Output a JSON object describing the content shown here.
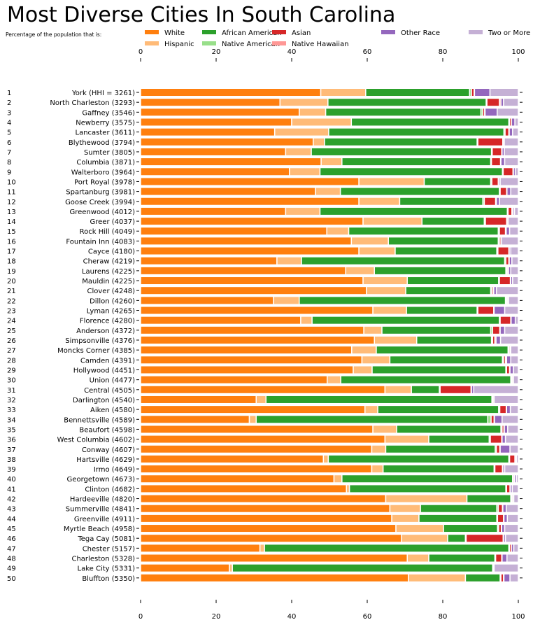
{
  "title": "Most Diverse Cities In South Carolina",
  "subtitle": "Percentage of the population that is:",
  "chart_data": {
    "type": "bar",
    "orientation": "horizontal",
    "stacked": true,
    "xlim": [
      0,
      100
    ],
    "x_ticks": [
      0,
      20,
      40,
      60,
      80,
      100
    ],
    "grid": false,
    "legend_placement": "top",
    "ranks": [
      1,
      2,
      3,
      4,
      5,
      6,
      7,
      8,
      9,
      10,
      11,
      12,
      13,
      14,
      15,
      16,
      17,
      18,
      19,
      20,
      21,
      22,
      23,
      24,
      25,
      26,
      27,
      28,
      29,
      30,
      31,
      32,
      33,
      34,
      35,
      36,
      37,
      38,
      39,
      40,
      41,
      42,
      43,
      44,
      45,
      46,
      47,
      48,
      49,
      50
    ],
    "categories": [
      "York (HHI = 3261)",
      "North Charleston (3293)",
      "Gaffney (3546)",
      "Newberry (3575)",
      "Lancaster (3611)",
      "Blythewood (3794)",
      "Sumter (3805)",
      "Columbia (3871)",
      "Walterboro (3964)",
      "Port Royal (3978)",
      "Spartanburg (3981)",
      "Goose Creek (3994)",
      "Greenwood (4012)",
      "Greer (4037)",
      "Rock Hill (4049)",
      "Fountain Inn (4083)",
      "Cayce (4180)",
      "Cheraw (4219)",
      "Laurens (4225)",
      "Mauldin (4225)",
      "Clover (4248)",
      "Dillon (4260)",
      "Lyman (4265)",
      "Florence (4280)",
      "Anderson (4372)",
      "Simpsonville (4376)",
      "Moncks Corner (4385)",
      "Camden (4391)",
      "Hollywood (4451)",
      "Union (4477)",
      "Central (4505)",
      "Darlington (4540)",
      "Aiken (4580)",
      "Bennettsville (4589)",
      "Beaufort (4598)",
      "West Columbia (4602)",
      "Conway (4607)",
      "Hartsville (4629)",
      "Irmo (4649)",
      "Georgetown (4673)",
      "Clinton (4682)",
      "Hardeeville (4820)",
      "Summerville (4841)",
      "Greenville (4911)",
      "Myrtle Beach (4958)",
      "Tega Cay (5081)",
      "Chester (5157)",
      "Charleston (5328)",
      "Lake City (5331)",
      "Bluffton (5350)"
    ],
    "series": [
      {
        "name": "White",
        "color": "#ff7f0e",
        "values": [
          47.7,
          36.9,
          42.0,
          40.0,
          35.5,
          45.7,
          38.4,
          47.8,
          39.4,
          57.8,
          46.3,
          57.8,
          38.4,
          58.9,
          49.3,
          55.8,
          57.8,
          36.1,
          54.3,
          58.9,
          59.8,
          35.2,
          61.5,
          42.4,
          59.1,
          61.9,
          55.9,
          58.6,
          56.3,
          49.4,
          64.7,
          30.6,
          59.4,
          28.8,
          61.5,
          64.7,
          61.2,
          48.4,
          61.2,
          51.2,
          54.5,
          64.9,
          66.0,
          66.5,
          67.6,
          69.1,
          31.6,
          70.6,
          23.5,
          70.9
        ]
      },
      {
        "name": "Hispanic",
        "color": "#ffbb78",
        "values": [
          11.9,
          12.7,
          7.0,
          15.8,
          14.3,
          3.0,
          6.8,
          5.5,
          8.1,
          17.3,
          6.6,
          10.8,
          9.1,
          15.6,
          5.8,
          9.8,
          9.6,
          6.5,
          7.6,
          11.7,
          10.4,
          6.8,
          8.9,
          3.0,
          4.8,
          11.2,
          6.5,
          7.4,
          5.0,
          3.6,
          7.0,
          2.6,
          3.4,
          1.8,
          6.3,
          11.6,
          3.7,
          1.3,
          3.0,
          2.1,
          0.8,
          21.5,
          8.1,
          7.2,
          12.6,
          12.2,
          1.2,
          5.7,
          0.8,
          15.1
        ]
      },
      {
        "name": "African American",
        "color": "#2ca02c",
        "values": [
          27.5,
          41.9,
          41.1,
          41.7,
          46.4,
          40.4,
          47.7,
          39.4,
          48.3,
          17.6,
          42.1,
          22.0,
          49.6,
          16.5,
          39.6,
          29.1,
          26.9,
          53.8,
          34.8,
          24.2,
          22.5,
          54.6,
          18.7,
          49.6,
          28.8,
          19.8,
          34.9,
          29.8,
          35.4,
          45.0,
          7.4,
          59.8,
          32.0,
          61.3,
          27.6,
          16.0,
          29.0,
          47.8,
          29.4,
          45.2,
          41.4,
          11.6,
          20.2,
          20.6,
          14.3,
          4.7,
          64.7,
          17.5,
          68.9,
          9.2
        ]
      },
      {
        "name": "Native American",
        "color": "#98df8a",
        "values": [
          0.5,
          0.2,
          0.5,
          0.2,
          0.3,
          0.2,
          0.2,
          0.2,
          0.2,
          0.3,
          0.2,
          0.4,
          0.2,
          0.3,
          0.3,
          0.3,
          0.3,
          0.3,
          0.3,
          0.2,
          0.3,
          0.3,
          0.2,
          0.2,
          0.5,
          0.3,
          0.2,
          0.3,
          0.2,
          0.2,
          0.2,
          0.2,
          0.3,
          0.9,
          0.3,
          0.3,
          0.3,
          0.2,
          0.2,
          0.2,
          0.2,
          0.2,
          0.4,
          0.2,
          0.3,
          0.2,
          0.2,
          0.2,
          0.2,
          0.2
        ]
      },
      {
        "name": "Asian",
        "color": "#d62728",
        "values": [
          0.7,
          3.3,
          0.5,
          0.5,
          1.0,
          6.6,
          2.5,
          2.4,
          2.6,
          1.7,
          1.7,
          3.0,
          1.0,
          5.6,
          1.6,
          0.4,
          2.9,
          0.8,
          0.3,
          2.9,
          0.4,
          0.3,
          4.2,
          2.8,
          1.9,
          0.6,
          0.3,
          0.5,
          0.8,
          0.3,
          8.2,
          0.3,
          1.7,
          0.8,
          0.5,
          3.0,
          0.9,
          1.4,
          2.0,
          0.3,
          0.9,
          0.3,
          1.1,
          1.6,
          0.7,
          9.8,
          0.5,
          1.6,
          0.1,
          0.7
        ]
      },
      {
        "name": "Native Hawaiian",
        "color": "#ff9896",
        "values": [
          0.1,
          0.4,
          0.1,
          0.0,
          0.1,
          0.1,
          0.1,
          0.1,
          0.1,
          0.1,
          0.1,
          0.2,
          0.3,
          0.1,
          0.2,
          0.1,
          0.1,
          0.1,
          0.1,
          0.1,
          0.1,
          0.1,
          0.1,
          0.1,
          0.1,
          0.3,
          0.1,
          0.3,
          0.1,
          0.0,
          0.1,
          0.0,
          0.1,
          0.1,
          0.1,
          0.1,
          0.1,
          0.1,
          0.1,
          0.0,
          0.1,
          0.0,
          0.1,
          0.1,
          0.1,
          0.1,
          0.0,
          0.1,
          0.0,
          0.1
        ]
      },
      {
        "name": "Other Race",
        "color": "#9467bd",
        "values": [
          4.1,
          0.7,
          3.2,
          0.9,
          0.9,
          0.3,
          0.6,
          1.0,
          0.5,
          0.4,
          1.0,
          0.8,
          0.4,
          0.3,
          0.9,
          0.0,
          0.4,
          0.7,
          0.6,
          0.5,
          0.7,
          0.1,
          2.8,
          1.1,
          1.2,
          1.2,
          0.1,
          1.1,
          0.9,
          0.2,
          0.6,
          0.1,
          1.0,
          2.0,
          0.9,
          0.9,
          2.6,
          0.3,
          0.5,
          0.5,
          0.5,
          0.3,
          0.9,
          0.9,
          0.8,
          0.5,
          0.6,
          1.3,
          0.1,
          1.6
        ]
      },
      {
        "name": "Two or More",
        "color": "#c5b0d5",
        "values": [
          7.5,
          3.9,
          5.6,
          0.9,
          1.5,
          3.7,
          3.7,
          3.6,
          0.8,
          4.8,
          2.0,
          5.0,
          1.0,
          2.7,
          2.3,
          4.5,
          2.0,
          1.7,
          2.0,
          1.5,
          5.8,
          2.6,
          3.6,
          0.8,
          3.6,
          4.7,
          2.0,
          2.0,
          1.3,
          1.3,
          11.8,
          6.4,
          2.1,
          4.3,
          2.8,
          3.4,
          2.2,
          0.5,
          3.6,
          0.5,
          1.6,
          1.2,
          3.2,
          2.9,
          3.6,
          3.4,
          1.2,
          3.0,
          6.4,
          2.2
        ]
      }
    ]
  }
}
